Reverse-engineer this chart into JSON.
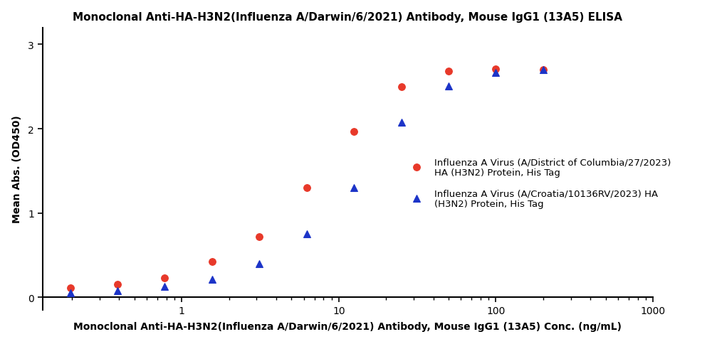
{
  "title": "Monoclonal Anti-HA-H3N2(Influenza A/Darwin/6/2021) Antibody, Mouse IgG1 (13A5) ELISA",
  "xlabel": "Monoclonal Anti-HA-H3N2(Influenza A/Darwin/6/2021) Antibody, Mouse IgG1 (13A5) Conc. (ng/mL)",
  "ylabel": "Mean Abs. (OD450)",
  "xlim": [
    0.13,
    1000
  ],
  "ylim": [
    -0.15,
    3.2
  ],
  "yticks": [
    0,
    1,
    2,
    3
  ],
  "series": [
    {
      "label": "Influenza A Virus (A/District of Columbia/27/2023)\nHA (H3N2) Protein, His Tag",
      "color": "#e8392a",
      "marker": "o",
      "x": [
        0.195,
        0.391,
        0.781,
        1.563,
        3.125,
        6.25,
        12.5,
        25,
        50,
        100,
        200
      ],
      "y": [
        0.115,
        0.15,
        0.23,
        0.42,
        0.72,
        1.3,
        1.97,
        2.5,
        2.68,
        2.71,
        2.7
      ],
      "ec50_guess": 5.5,
      "hill_guess": 1.8,
      "bottom_guess": 0.08,
      "top_guess": 2.75
    },
    {
      "label": "Influenza A Virus (A/Croatia/10136RV/2023) HA\n(H3N2) Protein, His Tag",
      "color": "#1c34c8",
      "marker": "^",
      "x": [
        0.195,
        0.391,
        0.781,
        1.563,
        3.125,
        6.25,
        12.5,
        25,
        50,
        100,
        200
      ],
      "y": [
        0.055,
        0.075,
        0.125,
        0.215,
        0.4,
        0.75,
        1.3,
        2.08,
        2.51,
        2.67,
        2.7
      ],
      "ec50_guess": 12.0,
      "hill_guess": 1.9,
      "bottom_guess": 0.04,
      "top_guess": 2.75
    }
  ],
  "title_fontsize": 11,
  "label_fontsize": 10,
  "tick_fontsize": 10,
  "legend_fontsize": 9.5,
  "line_width": 2.0,
  "marker_size": 7,
  "figsize": [
    10.0,
    4.85
  ],
  "dpi": 100
}
